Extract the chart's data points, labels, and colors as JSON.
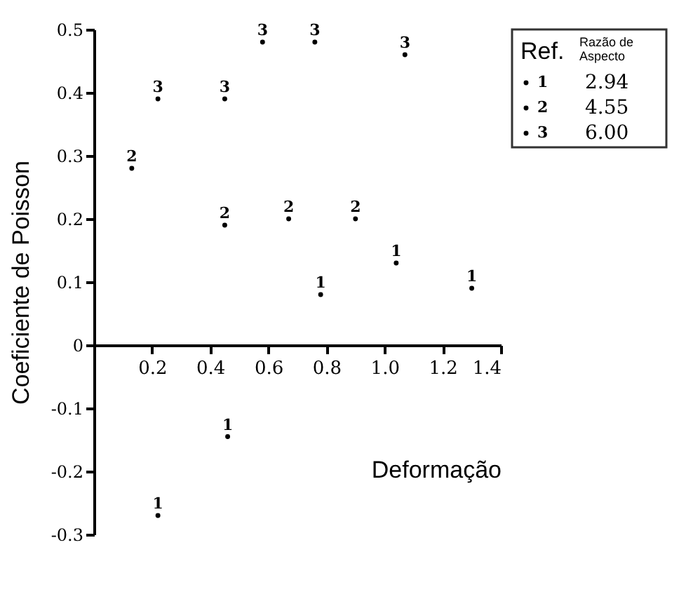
{
  "chart_data": {
    "type": "scatter",
    "xlabel": "Deformação",
    "ylabel": "Coeficiente de Poisson",
    "legend_title": "Ref.",
    "annotations": [
      "Razão de Aspecto",
      "2.94",
      "4.55",
      "6.00"
    ],
    "series": [
      {
        "name": "1",
        "color": "#000000",
        "x": [
          0.22,
          0.46,
          0.78,
          1.04,
          1.3
        ],
        "values": [
          -0.27,
          -0.145,
          0.08,
          0.13,
          0.09
        ]
      },
      {
        "name": "2",
        "color": "#000000",
        "x": [
          0.13,
          0.45,
          0.67,
          0.9
        ],
        "values": [
          0.28,
          0.19,
          0.2,
          0.2
        ]
      },
      {
        "name": "3",
        "color": "#000000",
        "x": [
          0.22,
          0.45,
          0.58,
          0.76,
          1.07
        ],
        "values": [
          0.39,
          0.39,
          0.48,
          0.48,
          0.46
        ]
      }
    ],
    "xlim": [
      0,
      1.4
    ],
    "ylim": [
      -0.3,
      0.5
    ],
    "xticks": [
      0.2,
      0.4,
      0.6,
      0.8,
      {
        "value": 1.0,
        "label": "1.0"
      },
      1.2,
      1.4
    ],
    "yticks": [
      -0.3,
      -0.2,
      -0.1,
      0,
      0.1,
      0.2,
      0.3,
      0.4,
      0.5
    ],
    "grid": false,
    "legend": "top right"
  }
}
